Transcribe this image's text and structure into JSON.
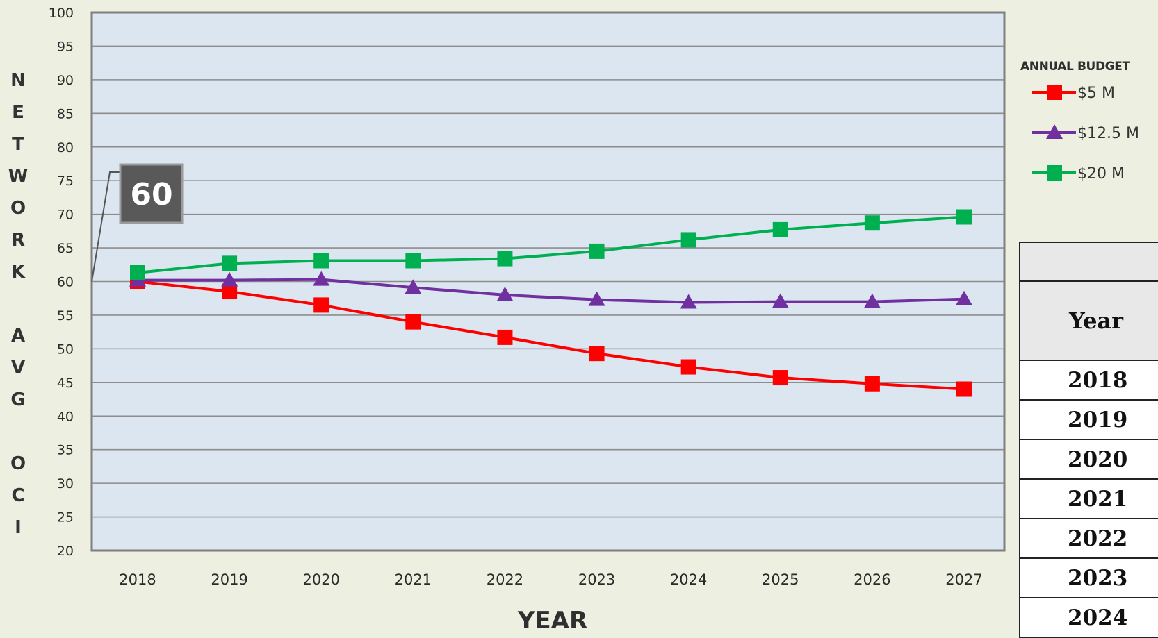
{
  "chart_data": {
    "type": "line",
    "title": "",
    "xlabel": "YEAR",
    "ylabel": "NETWORK AVG OCI",
    "x": [
      "2018",
      "2019",
      "2020",
      "2021",
      "2022",
      "2023",
      "2024",
      "2025",
      "2026",
      "2027"
    ],
    "ylim": [
      20,
      100
    ],
    "yticks": [
      100,
      95,
      90,
      85,
      80,
      75,
      70,
      65,
      60,
      55,
      50,
      45,
      40,
      35,
      30,
      25,
      20
    ],
    "grid": true,
    "legend": {
      "title": "ANNUAL BUDGET",
      "placement": "right"
    },
    "series": [
      {
        "name": "$5 M",
        "color": "#ff0000",
        "marker": "square",
        "values": [
          60,
          58.5,
          56.5,
          54,
          51.7,
          49.3,
          47.3,
          45.7,
          44.8,
          44
        ]
      },
      {
        "name": "$12.5 M",
        "color": "#7030a0",
        "marker": "triangle",
        "values": [
          60.2,
          60.2,
          60.3,
          59.1,
          58,
          57.3,
          56.9,
          57,
          57,
          57.4
        ]
      },
      {
        "name": "$20 M",
        "color": "#00b050",
        "marker": "square",
        "values": [
          61.3,
          62.7,
          63.1,
          63.1,
          63.4,
          64.5,
          66.2,
          67.7,
          68.7,
          69.6
        ]
      }
    ],
    "annotations": [
      {
        "text": "60",
        "x": "2018",
        "y": 60
      }
    ]
  },
  "side_table": {
    "header": "Year",
    "rows": [
      "2018",
      "2019",
      "2020",
      "2021",
      "2022",
      "2023",
      "2024"
    ]
  }
}
